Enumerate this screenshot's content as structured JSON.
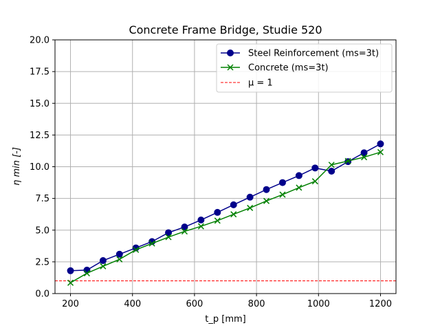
{
  "chart_data": {
    "type": "line",
    "title": "Concrete Frame Bridge, Studie 520",
    "xlabel": "t_p [mm]",
    "ylabel": "η min [-]",
    "xlim": [
      150,
      1250
    ],
    "ylim": [
      0,
      20
    ],
    "xticks": [
      200,
      400,
      600,
      800,
      1000,
      1200
    ],
    "yticks": [
      0.0,
      2.5,
      5.0,
      7.5,
      10.0,
      12.5,
      15.0,
      17.5,
      20.0
    ],
    "grid": true,
    "legend_position": "top-right",
    "x": [
      200,
      253,
      305,
      358,
      411,
      463,
      516,
      568,
      621,
      674,
      726,
      779,
      832,
      884,
      937,
      989,
      1042,
      1095,
      1147,
      1200
    ],
    "series": [
      {
        "name": "Steel Reinforcement (ms=3t)",
        "color": "#00008b",
        "marker": "circle",
        "values": [
          1.8,
          1.85,
          2.6,
          3.1,
          3.6,
          4.1,
          4.8,
          5.25,
          5.8,
          6.4,
          7.0,
          7.6,
          8.2,
          8.75,
          9.3,
          9.9,
          9.65,
          10.4,
          11.1,
          11.8
        ]
      },
      {
        "name": "Concrete (ms=3t)",
        "color": "#008000",
        "marker": "x",
        "values": [
          0.85,
          1.6,
          2.15,
          2.7,
          3.45,
          3.95,
          4.45,
          4.9,
          5.3,
          5.75,
          6.25,
          6.75,
          7.3,
          7.8,
          8.35,
          8.85,
          10.15,
          10.45,
          10.75,
          11.15
        ]
      }
    ],
    "reference_line": {
      "label": "μ = 1",
      "y": 1,
      "color": "#ff0000",
      "style": "dashed"
    }
  }
}
